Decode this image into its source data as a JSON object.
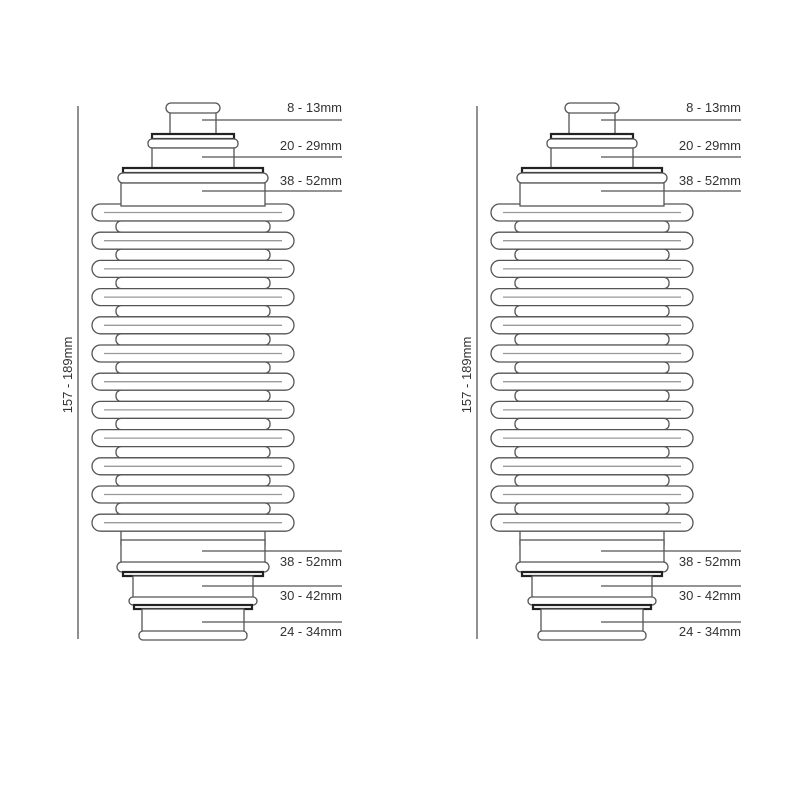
{
  "diagrams": [
    {
      "overall_length": "157 - 189mm",
      "top_dimensions": [
        "8 - 13mm",
        "20 - 29mm",
        "38 - 52mm"
      ],
      "bottom_dimensions": [
        "38 - 52mm",
        "30 - 42mm",
        "24 - 34mm"
      ]
    },
    {
      "overall_length": "157 - 189mm",
      "top_dimensions": [
        "8 - 13mm",
        "20 - 29mm",
        "38 - 52mm"
      ],
      "bottom_dimensions": [
        "38 - 52mm",
        "30 - 42mm",
        "24 - 34mm"
      ]
    }
  ],
  "colors": {
    "outline": "#555555",
    "text": "#333333",
    "background": "#ffffff"
  }
}
